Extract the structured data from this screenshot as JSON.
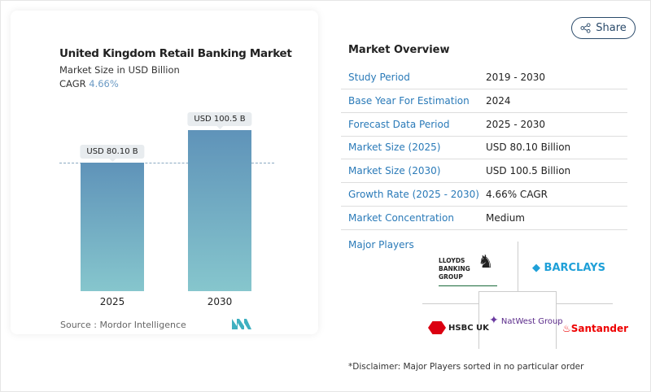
{
  "chart_data": {
    "type": "bar",
    "title": "United Kingdom Retail Banking Market",
    "subtitle": "Market Size in USD Billion",
    "cagr_label": "CAGR",
    "cagr_value": "4.66%",
    "categories": [
      "2025",
      "2030"
    ],
    "values": [
      80.1,
      100.5
    ],
    "data_labels": [
      "USD 80.10 B",
      "USD 100.5 B"
    ],
    "ylim": [
      0,
      100.5
    ],
    "reference_line": 80.1,
    "colors": [
      "#5f93b9",
      "#86c6cd"
    ]
  },
  "source": "Source :  Mordor Intelligence",
  "share_label": "Share",
  "overview": {
    "title": "Market Overview",
    "rows": [
      {
        "k": "Study Period",
        "v": "2019 - 2030"
      },
      {
        "k": "Base Year For Estimation",
        "v": "2024"
      },
      {
        "k": "Forecast Data Period",
        "v": "2025 - 2030"
      },
      {
        "k": "Market Size (2025)",
        "v": "USD 80.10 Billion"
      },
      {
        "k": "Market Size (2030)",
        "v": "USD 100.5 Billion"
      },
      {
        "k": "Growth Rate (2025 - 2030)",
        "v": "4.66% CAGR"
      },
      {
        "k": "Market Concentration",
        "v": "Medium"
      }
    ]
  },
  "major_players": {
    "title": "Major Players",
    "players": [
      "LLOYDS BANKING GROUP",
      "BARCLAYS",
      "HSBC UK",
      "NatWest Group",
      "Santander"
    ]
  },
  "disclaimer": "*Disclaimer: Major Players sorted in no particular order"
}
